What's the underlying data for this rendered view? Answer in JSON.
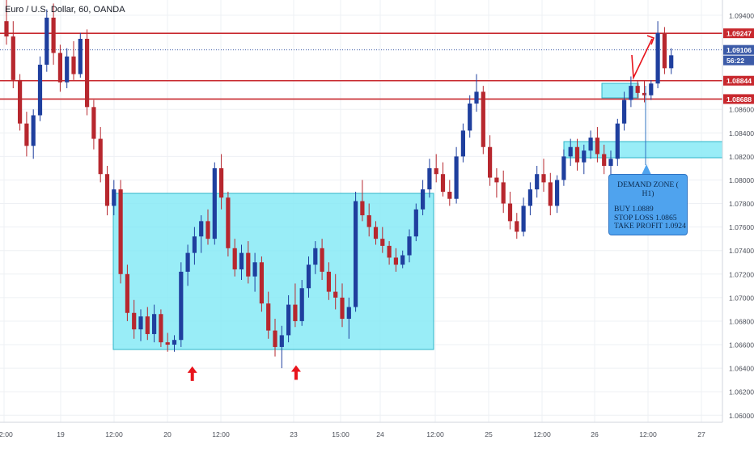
{
  "header": {
    "symbol_title": "Euro / U.S. Dollar, 60, OANDA"
  },
  "colors": {
    "bull": "#1f3f9e",
    "bear": "#b7272e",
    "zone_fill": "#7fe8f5",
    "zone_stroke": "#2fb5c9",
    "level_line": "#c8282e",
    "current_line": "#3c5ba8",
    "arrow": "#e8141c",
    "callout_bg": "#4fa3ee"
  },
  "axis": {
    "price_ticks": [
      "1.09400",
      "1.08600",
      "1.08400",
      "1.08200",
      "1.08000",
      "1.07800",
      "1.07600",
      "1.07400",
      "1.07200",
      "1.07000",
      "1.06800",
      "1.06600",
      "1.06400",
      "1.06200",
      "1.06000"
    ],
    "time_ticks": [
      "12:00",
      "19",
      "12:00",
      "20",
      "12:00",
      "23",
      "15:00",
      "24",
      "12:00",
      "25",
      "12:00",
      "26",
      "12:00",
      "27"
    ]
  },
  "price_labels": {
    "level_top": "1.09247",
    "current": "1.09106",
    "countdown": "56:22",
    "level_mid": "1.08844",
    "level_low": "1.08688"
  },
  "callout": {
    "title": "DEMAND ZONE ( H1)",
    "buy": "BUY 1.0889",
    "stop_loss": "STOP LOSS 1.0865",
    "take_profit": "TAKE PROFIT 1.0924"
  },
  "chart_data": {
    "type": "candlestick",
    "symbol": "Euro / U.S. Dollar",
    "interval": "60",
    "source": "OANDA",
    "x_ticks": [
      "12:00",
      "19",
      "12:00",
      "20",
      "12:00",
      "23",
      "15:00",
      "24",
      "12:00",
      "25",
      "12:00",
      "26",
      "12:00",
      "27"
    ],
    "y_ticks": [
      1.094,
      1.086,
      1.084,
      1.082,
      1.08,
      1.078,
      1.076,
      1.074,
      1.072,
      1.07,
      1.068,
      1.066,
      1.064,
      1.062,
      1.06
    ],
    "ylim": [
      1.0594,
      1.0953
    ],
    "horizontal_levels": [
      {
        "label": "1.09247",
        "value": 1.09247
      },
      {
        "label": "1.08844",
        "value": 1.08844
      },
      {
        "label": "1.08688",
        "value": 1.08688
      }
    ],
    "current_price": 1.09106,
    "zones": [
      {
        "bar_from": 11,
        "bar_to": 56,
        "price_low": 1.0655,
        "price_high": 1.079
      },
      {
        "bar_from": 86,
        "bar_to": 88.5,
        "price_low": 1.0868,
        "price_high": 1.0882
      },
      {
        "bar_from": 79,
        "bar_to": 100,
        "price_low": 1.082,
        "price_high": 1.0834
      }
    ],
    "arrows_up_at": [
      {
        "bar": 19,
        "price": 1.0636
      },
      {
        "bar": 36.5,
        "price": 1.0637
      }
    ],
    "projection": [
      {
        "bar": 87.5,
        "price": 1.0906
      },
      {
        "bar": 88.5,
        "price": 1.0887
      },
      {
        "bar": 90.5,
        "price": 1.0924
      }
    ],
    "ohlc": [
      [
        1.0935,
        1.0955,
        1.0915,
        1.0922
      ],
      [
        1.0922,
        1.0935,
        1.0878,
        1.0885
      ],
      [
        1.0885,
        1.089,
        1.0842,
        1.0848
      ],
      [
        1.0848,
        1.0858,
        1.082,
        1.0829
      ],
      [
        1.0829,
        1.086,
        1.0818,
        1.0855
      ],
      [
        1.0855,
        1.0905,
        1.085,
        1.0898
      ],
      [
        1.0898,
        1.0945,
        1.0892,
        1.0938
      ],
      [
        1.0938,
        1.095,
        1.0898,
        1.0908
      ],
      [
        1.0908,
        1.0915,
        1.0875,
        1.0883
      ],
      [
        1.0883,
        1.0912,
        1.0878,
        1.0905
      ],
      [
        1.0905,
        1.0918,
        1.0885,
        1.089
      ],
      [
        1.089,
        1.0925,
        1.0887,
        1.092
      ],
      [
        1.092,
        1.0928,
        1.0855,
        1.0862
      ],
      [
        1.0862,
        1.0868,
        1.0826,
        1.0835
      ],
      [
        1.0835,
        1.0845,
        1.0798,
        1.0805
      ],
      [
        1.0805,
        1.0812,
        1.077,
        1.0778
      ],
      [
        1.0778,
        1.08,
        1.077,
        1.0792
      ],
      [
        1.0792,
        1.08,
        1.0712,
        1.072
      ],
      [
        1.072,
        1.0728,
        1.068,
        1.0687
      ],
      [
        1.0687,
        1.0698,
        1.0665,
        1.0673
      ],
      [
        1.0673,
        1.069,
        1.0663,
        1.0684
      ],
      [
        1.0684,
        1.0692,
        1.0664,
        1.0669
      ],
      [
        1.0669,
        1.0694,
        1.0662,
        1.0686
      ],
      [
        1.0686,
        1.069,
        1.0658,
        1.0662
      ],
      [
        1.0662,
        1.067,
        1.0654,
        1.066
      ],
      [
        1.066,
        1.0668,
        1.0654,
        1.0664
      ],
      [
        1.0664,
        1.073,
        1.0658,
        1.0722
      ],
      [
        1.0722,
        1.0745,
        1.071,
        1.0738
      ],
      [
        1.0738,
        1.076,
        1.0728,
        1.0752
      ],
      [
        1.0752,
        1.077,
        1.0738,
        1.0765
      ],
      [
        1.0765,
        1.0775,
        1.0745,
        1.075
      ],
      [
        1.075,
        1.0815,
        1.0745,
        1.081
      ],
      [
        1.081,
        1.0822,
        1.0775,
        1.0785
      ],
      [
        1.0785,
        1.079,
        1.0735,
        1.0742
      ],
      [
        1.0742,
        1.075,
        1.0718,
        1.0724
      ],
      [
        1.0724,
        1.0745,
        1.0715,
        1.0738
      ],
      [
        1.0738,
        1.0748,
        1.0712,
        1.0718
      ],
      [
        1.0718,
        1.0738,
        1.0705,
        1.073
      ],
      [
        1.073,
        1.0735,
        1.0688,
        1.0695
      ],
      [
        1.0695,
        1.0705,
        1.0665,
        1.0672
      ],
      [
        1.0672,
        1.0682,
        1.065,
        1.0658
      ],
      [
        1.0658,
        1.0676,
        1.064,
        1.0668
      ],
      [
        1.0668,
        1.0702,
        1.0662,
        1.0694
      ],
      [
        1.0694,
        1.0712,
        1.0675,
        1.068
      ],
      [
        1.068,
        1.0715,
        1.0676,
        1.0708
      ],
      [
        1.0708,
        1.0735,
        1.07,
        1.0728
      ],
      [
        1.0728,
        1.0748,
        1.072,
        1.0742
      ],
      [
        1.0742,
        1.075,
        1.0715,
        1.0722
      ],
      [
        1.0722,
        1.073,
        1.0698,
        1.0705
      ],
      [
        1.0705,
        1.072,
        1.069,
        1.07
      ],
      [
        1.07,
        1.0712,
        1.0675,
        1.0682
      ],
      [
        1.0682,
        1.07,
        1.0665,
        1.0692
      ],
      [
        1.0692,
        1.079,
        1.0688,
        1.0782
      ],
      [
        1.0782,
        1.08,
        1.0765,
        1.077
      ],
      [
        1.077,
        1.078,
        1.0752,
        1.076
      ],
      [
        1.076,
        1.0765,
        1.0745,
        1.075
      ],
      [
        1.075,
        1.076,
        1.0738,
        1.0744
      ],
      [
        1.0744,
        1.0748,
        1.0728,
        1.0734
      ]
    ],
    "ohlc_note": "first bars of the chart; later bars follow the same pattern",
    "ohlc_tail": [
      [
        1.0734,
        1.0742,
        1.0722,
        1.0728
      ],
      [
        1.0728,
        1.074,
        1.0725,
        1.0736
      ],
      [
        1.0736,
        1.0758,
        1.073,
        1.0752
      ],
      [
        1.0752,
        1.078,
        1.0748,
        1.0775
      ],
      [
        1.0775,
        1.08,
        1.077,
        1.0792
      ],
      [
        1.0792,
        1.0818,
        1.0785,
        1.081
      ],
      [
        1.081,
        1.0822,
        1.0798,
        1.0805
      ],
      [
        1.0805,
        1.0815,
        1.0786,
        1.079
      ],
      [
        1.079,
        1.08,
        1.0778,
        1.0784
      ],
      [
        1.0784,
        1.0828,
        1.078,
        1.082
      ],
      [
        1.082,
        1.0848,
        1.0815,
        1.0842
      ],
      [
        1.0842,
        1.0872,
        1.0836,
        1.0865
      ],
      [
        1.0865,
        1.089,
        1.0858,
        1.0875
      ],
      [
        1.0875,
        1.088,
        1.0822,
        1.0828
      ],
      [
        1.0828,
        1.0838,
        1.0795,
        1.0802
      ],
      [
        1.0802,
        1.081,
        1.0785,
        1.0798
      ],
      [
        1.0798,
        1.0808,
        1.0772,
        1.078
      ],
      [
        1.078,
        1.079,
        1.0758,
        1.0765
      ],
      [
        1.0765,
        1.0772,
        1.075,
        1.0756
      ],
      [
        1.0756,
        1.0785,
        1.0752,
        1.0778
      ],
      [
        1.0778,
        1.0798,
        1.077,
        1.0792
      ],
      [
        1.0792,
        1.0812,
        1.0785,
        1.0805
      ],
      [
        1.0805,
        1.0818,
        1.079,
        1.0798
      ],
      [
        1.0798,
        1.0806,
        1.077,
        1.0778
      ],
      [
        1.0778,
        1.0804,
        1.0772,
        1.08
      ],
      [
        1.08,
        1.0826,
        1.0795,
        1.082
      ],
      [
        1.082,
        1.0835,
        1.0812,
        1.0828
      ],
      [
        1.0828,
        1.0835,
        1.0808,
        1.0815
      ],
      [
        1.0815,
        1.083,
        1.0805,
        1.0825
      ],
      [
        1.0825,
        1.0842,
        1.0818,
        1.0836
      ],
      [
        1.0836,
        1.0845,
        1.0815,
        1.0822
      ],
      [
        1.0822,
        1.083,
        1.0805,
        1.0812
      ],
      [
        1.0812,
        1.0825,
        1.08,
        1.0818
      ],
      [
        1.0818,
        1.0852,
        1.0812,
        1.0848
      ],
      [
        1.0848,
        1.0875,
        1.0842,
        1.0868
      ],
      [
        1.0868,
        1.0888,
        1.0862,
        1.088
      ],
      [
        1.088,
        1.0885,
        1.087,
        1.0874
      ],
      [
        1.0874,
        1.0884,
        1.0866,
        1.0872
      ],
      [
        1.0872,
        1.0885,
        1.0868,
        1.0882
      ],
      [
        1.0882,
        1.0935,
        1.0878,
        1.0925
      ],
      [
        1.0925,
        1.093,
        1.089,
        1.0895
      ],
      [
        1.0895,
        1.0912,
        1.089,
        1.0906
      ]
    ]
  }
}
